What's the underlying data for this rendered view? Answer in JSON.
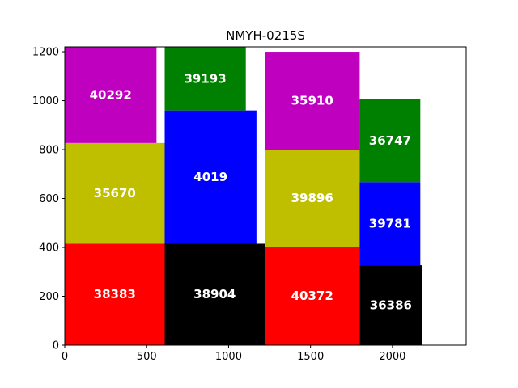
{
  "chart_data": {
    "type": "bar",
    "subtype": "packed-rectangles",
    "title": "NMYH-0215S",
    "xlabel": "",
    "ylabel": "",
    "xlim": [
      0,
      2450
    ],
    "ylim": [
      0,
      1220
    ],
    "xticks": [
      0,
      500,
      1000,
      1500,
      2000
    ],
    "yticks": [
      0,
      200,
      400,
      600,
      800,
      1000,
      1200
    ],
    "grid": false,
    "rectangles": [
      {
        "label": "38383",
        "x": 0,
        "y": 0,
        "w": 610,
        "h": 415,
        "color": "#ff0000"
      },
      {
        "label": "35670",
        "x": 0,
        "y": 415,
        "w": 610,
        "h": 412,
        "color": "#bfbf00"
      },
      {
        "label": "40292",
        "x": 0,
        "y": 827,
        "w": 560,
        "h": 393,
        "color": "#bf00bf"
      },
      {
        "label": "38904",
        "x": 610,
        "y": 0,
        "w": 610,
        "h": 415,
        "color": "#000000"
      },
      {
        "label": "4019",
        "x": 610,
        "y": 415,
        "w": 560,
        "h": 545,
        "color": "#0000ff"
      },
      {
        "label": "39193",
        "x": 610,
        "y": 960,
        "w": 495,
        "h": 260,
        "color": "#008000"
      },
      {
        "label": "40372",
        "x": 1220,
        "y": 0,
        "w": 580,
        "h": 403,
        "color": "#ff0000"
      },
      {
        "label": "39896",
        "x": 1220,
        "y": 403,
        "w": 580,
        "h": 397,
        "color": "#bfbf00"
      },
      {
        "label": "35910",
        "x": 1220,
        "y": 800,
        "w": 580,
        "h": 400,
        "color": "#bf00bf"
      },
      {
        "label": "36386",
        "x": 1800,
        "y": 0,
        "w": 380,
        "h": 327,
        "color": "#000000"
      },
      {
        "label": "39781",
        "x": 1800,
        "y": 327,
        "w": 370,
        "h": 340,
        "color": "#0000ff"
      },
      {
        "label": "36747",
        "x": 1800,
        "y": 667,
        "w": 370,
        "h": 340,
        "color": "#008000"
      }
    ]
  }
}
